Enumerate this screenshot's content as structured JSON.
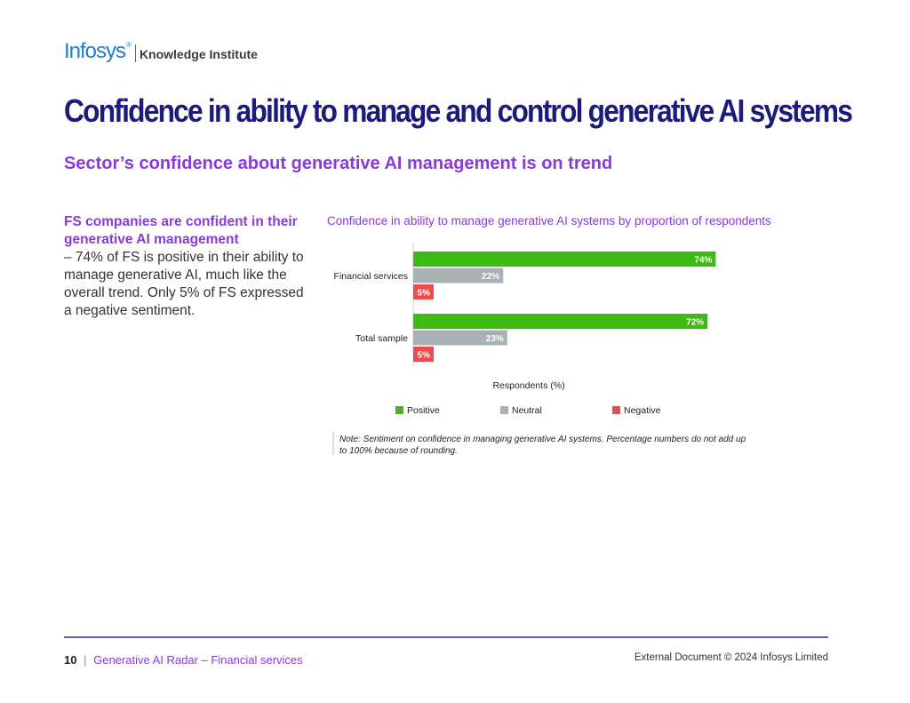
{
  "header": {
    "brand": "Infosys",
    "brand_reg": "®",
    "sub_brand": "Knowledge Institute"
  },
  "title": "Confidence in ability to manage and control generative AI systems",
  "subtitle": "Sector’s confidence about generative AI management is on trend",
  "sidebar": {
    "heading": "FS companies are confident in their generative AI management",
    "body": "– 74% of FS is positive in their ability to manage generative AI, much like the overall trend. Only 5% of FS expressed a negative sentiment."
  },
  "chart_data": {
    "type": "bar",
    "orientation": "horizontal",
    "title": "Confidence in ability to manage generative AI systems by proportion of respondents",
    "categories": [
      "Financial services",
      "Total sample"
    ],
    "series": [
      {
        "name": "Positive",
        "color": "#3dbb12",
        "values": [
          74,
          72
        ]
      },
      {
        "name": "Neutral",
        "color": "#a9b1b5",
        "values": [
          22,
          23
        ]
      },
      {
        "name": "Negative",
        "color": "#ef4b4b",
        "values": [
          5,
          5
        ]
      }
    ],
    "value_suffix": "%",
    "xlabel": "Respondents (%)",
    "xlim": [
      0,
      100
    ],
    "legend": "bottom",
    "note": "Note: Sentiment on confidence in managing generative AI systems. Percentage numbers do not add up to 100% because of rounding."
  },
  "footer": {
    "page_number": "10",
    "separator": "|",
    "doc_title": "Generative AI Radar – Financial services",
    "copyright": "External Document © 2024 Infosys Limited"
  }
}
